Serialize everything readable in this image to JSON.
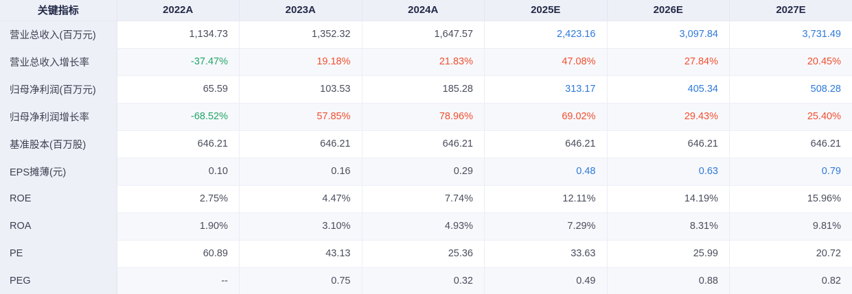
{
  "colors": {
    "header_bg": "#eef0f8",
    "label_column_bg": "#eef0f8",
    "striped_row_bg": "#f7f8fc",
    "header_text": "#232a47",
    "label_text": "#3c3f4e",
    "value_colors": {
      "default": "#4a4d5c",
      "blue": "#2e79d9",
      "red": "#f14f2f",
      "green": "#21a567"
    }
  },
  "table": {
    "columns": [
      "关键指标",
      "2022A",
      "2023A",
      "2024A",
      "2025E",
      "2026E",
      "2027E"
    ],
    "rows": [
      {
        "label": "营业总收入(百万元)",
        "values": [
          {
            "v": "1,134.73",
            "c": "default"
          },
          {
            "v": "1,352.32",
            "c": "default"
          },
          {
            "v": "1,647.57",
            "c": "default"
          },
          {
            "v": "2,423.16",
            "c": "blue"
          },
          {
            "v": "3,097.84",
            "c": "blue"
          },
          {
            "v": "3,731.49",
            "c": "blue"
          }
        ]
      },
      {
        "label": "营业总收入增长率",
        "values": [
          {
            "v": "-37.47%",
            "c": "green"
          },
          {
            "v": "19.18%",
            "c": "red"
          },
          {
            "v": "21.83%",
            "c": "red"
          },
          {
            "v": "47.08%",
            "c": "red"
          },
          {
            "v": "27.84%",
            "c": "red"
          },
          {
            "v": "20.45%",
            "c": "red"
          }
        ]
      },
      {
        "label": "归母净利润(百万元)",
        "values": [
          {
            "v": "65.59",
            "c": "default"
          },
          {
            "v": "103.53",
            "c": "default"
          },
          {
            "v": "185.28",
            "c": "default"
          },
          {
            "v": "313.17",
            "c": "blue"
          },
          {
            "v": "405.34",
            "c": "blue"
          },
          {
            "v": "508.28",
            "c": "blue"
          }
        ]
      },
      {
        "label": "归母净利润增长率",
        "values": [
          {
            "v": "-68.52%",
            "c": "green"
          },
          {
            "v": "57.85%",
            "c": "red"
          },
          {
            "v": "78.96%",
            "c": "red"
          },
          {
            "v": "69.02%",
            "c": "red"
          },
          {
            "v": "29.43%",
            "c": "red"
          },
          {
            "v": "25.40%",
            "c": "red"
          }
        ]
      },
      {
        "label": "基准股本(百万股)",
        "values": [
          {
            "v": "646.21",
            "c": "default"
          },
          {
            "v": "646.21",
            "c": "default"
          },
          {
            "v": "646.21",
            "c": "default"
          },
          {
            "v": "646.21",
            "c": "default"
          },
          {
            "v": "646.21",
            "c": "default"
          },
          {
            "v": "646.21",
            "c": "default"
          }
        ]
      },
      {
        "label": "EPS摊薄(元)",
        "values": [
          {
            "v": "0.10",
            "c": "default"
          },
          {
            "v": "0.16",
            "c": "default"
          },
          {
            "v": "0.29",
            "c": "default"
          },
          {
            "v": "0.48",
            "c": "blue"
          },
          {
            "v": "0.63",
            "c": "blue"
          },
          {
            "v": "0.79",
            "c": "blue"
          }
        ]
      },
      {
        "label": "ROE",
        "values": [
          {
            "v": "2.75%",
            "c": "default"
          },
          {
            "v": "4.47%",
            "c": "default"
          },
          {
            "v": "7.74%",
            "c": "default"
          },
          {
            "v": "12.11%",
            "c": "default"
          },
          {
            "v": "14.19%",
            "c": "default"
          },
          {
            "v": "15.96%",
            "c": "default"
          }
        ]
      },
      {
        "label": "ROA",
        "values": [
          {
            "v": "1.90%",
            "c": "default"
          },
          {
            "v": "3.10%",
            "c": "default"
          },
          {
            "v": "4.93%",
            "c": "default"
          },
          {
            "v": "7.29%",
            "c": "default"
          },
          {
            "v": "8.31%",
            "c": "default"
          },
          {
            "v": "9.81%",
            "c": "default"
          }
        ]
      },
      {
        "label": "PE",
        "values": [
          {
            "v": "60.89",
            "c": "default"
          },
          {
            "v": "43.13",
            "c": "default"
          },
          {
            "v": "25.36",
            "c": "default"
          },
          {
            "v": "33.63",
            "c": "default"
          },
          {
            "v": "25.99",
            "c": "default"
          },
          {
            "v": "20.72",
            "c": "default"
          }
        ]
      },
      {
        "label": "PEG",
        "values": [
          {
            "v": "--",
            "c": "default"
          },
          {
            "v": "0.75",
            "c": "default"
          },
          {
            "v": "0.32",
            "c": "default"
          },
          {
            "v": "0.49",
            "c": "default"
          },
          {
            "v": "0.88",
            "c": "default"
          },
          {
            "v": "0.82",
            "c": "default"
          }
        ]
      }
    ]
  }
}
